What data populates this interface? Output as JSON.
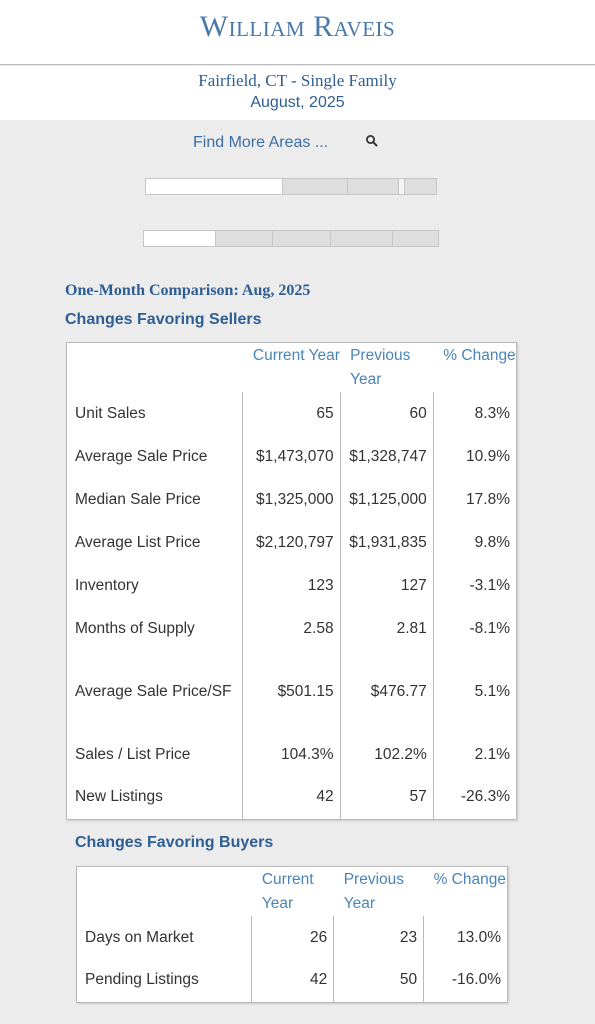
{
  "header": {
    "logo": "William Raveis"
  },
  "report": {
    "area": "Fairfield, CT - Single Family",
    "period": "August, 2025"
  },
  "search": {
    "label": "Find More Areas ..."
  },
  "comparison_title": "One-Month Comparison:  Aug, 2025",
  "sellers": {
    "title": "Changes Favoring Sellers",
    "headers": [
      "Current Year",
      "Previous Year",
      "% Change"
    ],
    "rows": [
      {
        "label": "Unit Sales",
        "current": "65",
        "previous": "60",
        "change": "8.3%"
      },
      {
        "label": "Average Sale Price",
        "current": "$1,473,070",
        "previous": "$1,328,747",
        "change": "10.9%"
      },
      {
        "label": "Median Sale Price",
        "current": "$1,325,000",
        "previous": "$1,125,000",
        "change": "17.8%"
      },
      {
        "label": "Average List Price",
        "current": "$2,120,797",
        "previous": "$1,931,835",
        "change": "9.8%"
      },
      {
        "label": "Inventory",
        "current": "123",
        "previous": "127",
        "change": "-3.1%"
      },
      {
        "label": "Months of Supply",
        "current": "2.58",
        "previous": "2.81",
        "change": "-8.1%"
      },
      {
        "label": "Average Sale Price/SF",
        "current": "$501.15",
        "previous": "$476.77",
        "change": "5.1%"
      },
      {
        "label": "Sales / List Price",
        "current": "104.3%",
        "previous": "102.2%",
        "change": "2.1%"
      },
      {
        "label": "New Listings",
        "current": "42",
        "previous": "57",
        "change": "-26.3%"
      }
    ]
  },
  "buyers": {
    "title": "Changes Favoring Buyers",
    "headers": [
      "Current Year",
      "Previous Year",
      "% Change"
    ],
    "rows": [
      {
        "label": "Days on Market",
        "current": "26",
        "previous": "23",
        "change": "13.0%"
      },
      {
        "label": "Pending Listings",
        "current": "42",
        "previous": "50",
        "change": "-16.0%"
      }
    ]
  }
}
